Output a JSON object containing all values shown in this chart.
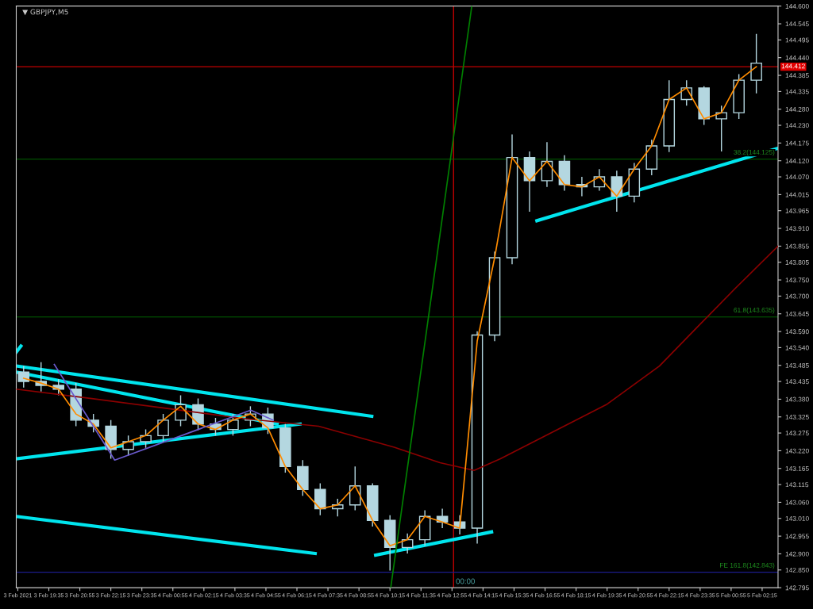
{
  "chart_data": {
    "type": "candlestick",
    "title": "▼ GBPJPY,M5",
    "xlim": [
      "2021-02-03T18:11",
      "2021-02-05T02:56"
    ],
    "ylim": [
      142.795,
      144.6
    ],
    "xticks": [
      {
        "value": "2021-02-03T18:15",
        "label": "3 Feb 2021"
      },
      {
        "value": "2021-02-03T19:35",
        "label": "3 Feb 19:35"
      },
      {
        "value": "2021-02-03T20:55",
        "label": "3 Feb 20:55"
      },
      {
        "value": "2021-02-03T22:15",
        "label": "3 Feb 22:15"
      },
      {
        "value": "2021-02-03T23:35",
        "label": "3 Feb 23:35"
      },
      {
        "value": "2021-02-04T00:55",
        "label": "4 Feb 00:55"
      },
      {
        "value": "2021-02-04T02:15",
        "label": "4 Feb 02:15"
      },
      {
        "value": "2021-02-04T03:35",
        "label": "4 Feb 03:35"
      },
      {
        "value": "2021-02-04T04:55",
        "label": "4 Feb 04:55"
      },
      {
        "value": "2021-02-04T06:15",
        "label": "4 Feb 06:15"
      },
      {
        "value": "2021-02-04T07:35",
        "label": "4 Feb 07:35"
      },
      {
        "value": "2021-02-04T08:55",
        "label": "4 Feb 08:55"
      },
      {
        "value": "2021-02-04T10:15",
        "label": "4 Feb 10:15"
      },
      {
        "value": "2021-02-04T11:35",
        "label": "4 Feb 11:35"
      },
      {
        "value": "2021-02-04T12:55",
        "label": "4 Feb 12:55"
      },
      {
        "value": "2021-02-04T14:15",
        "label": "4 Feb 14:15"
      },
      {
        "value": "2021-02-04T15:35",
        "label": "4 Feb 15:35"
      },
      {
        "value": "2021-02-04T16:55",
        "label": "4 Feb 16:55"
      },
      {
        "value": "2021-02-04T18:15",
        "label": "4 Feb 18:15"
      },
      {
        "value": "2021-02-04T19:35",
        "label": "4 Feb 19:35"
      },
      {
        "value": "2021-02-04T20:55",
        "label": "4 Feb 20:55"
      },
      {
        "value": "2021-02-04T22:15",
        "label": "4 Feb 22:15"
      },
      {
        "value": "2021-02-04T23:35",
        "label": "4 Feb 23:35"
      },
      {
        "value": "2021-02-05T00:55",
        "label": "5 Feb 00:55"
      },
      {
        "value": "2021-02-05T02:15",
        "label": "5 Feb 02:15"
      }
    ],
    "yticks": [
      {
        "value": 144.6,
        "label": "144.600"
      },
      {
        "value": 144.545,
        "label": "144.545"
      },
      {
        "value": 144.495,
        "label": "144.495"
      },
      {
        "value": 144.44,
        "label": "144.440"
      },
      {
        "value": 144.385,
        "label": "144.385"
      },
      {
        "value": 144.335,
        "label": "144.335"
      },
      {
        "value": 144.28,
        "label": "144.280"
      },
      {
        "value": 144.23,
        "label": "144.230"
      },
      {
        "value": 144.175,
        "label": "144.175"
      },
      {
        "value": 144.12,
        "label": "144.120"
      },
      {
        "value": 144.07,
        "label": "144.070"
      },
      {
        "value": 144.015,
        "label": "144.015"
      },
      {
        "value": 143.965,
        "label": "143.965"
      },
      {
        "value": 143.91,
        "label": "143.910"
      },
      {
        "value": 143.855,
        "label": "143.855"
      },
      {
        "value": 143.805,
        "label": "143.805"
      },
      {
        "value": 143.75,
        "label": "143.750"
      },
      {
        "value": 143.7,
        "label": "143.700"
      },
      {
        "value": 143.645,
        "label": "143.645"
      },
      {
        "value": 143.59,
        "label": "143.590"
      },
      {
        "value": 143.54,
        "label": "143.540"
      },
      {
        "value": 143.485,
        "label": "143.485"
      },
      {
        "value": 143.435,
        "label": "143.435"
      },
      {
        "value": 143.38,
        "label": "143.380"
      },
      {
        "value": 143.325,
        "label": "143.325"
      },
      {
        "value": 143.275,
        "label": "143.275"
      },
      {
        "value": 143.22,
        "label": "143.220"
      },
      {
        "value": 143.165,
        "label": "143.165"
      },
      {
        "value": 143.115,
        "label": "143.115"
      },
      {
        "value": 143.06,
        "label": "143.060"
      },
      {
        "value": 143.01,
        "label": "143.010"
      },
      {
        "value": 142.955,
        "label": "142.955"
      },
      {
        "value": 142.9,
        "label": "142.900"
      },
      {
        "value": 142.85,
        "label": "142.850"
      },
      {
        "value": 142.795,
        "label": "142.795"
      }
    ],
    "grid": false,
    "legend": false,
    "series": [
      {
        "type": "line",
        "color": "#8b0000",
        "line_style": "solid",
        "x": [
          "2021-02-03T18:11",
          "2021-02-03T21:26",
          "2021-02-04T00:41",
          "2021-02-04T03:56",
          "2021-02-04T07:11",
          "2021-02-04T10:26",
          "2021-02-04T12:24",
          "2021-02-04T13:52",
          "2021-02-04T15:00",
          "2021-02-04T16:57",
          "2021-02-04T19:33",
          "2021-02-04T21:50",
          "2021-02-04T23:27",
          "2021-02-05T01:05",
          "2021-02-05T02:56"
        ],
        "values": [
          143.411,
          143.382,
          143.351,
          143.32,
          143.296,
          143.231,
          143.183,
          143.159,
          143.195,
          143.267,
          143.363,
          143.483,
          143.603,
          143.723,
          143.855
        ]
      },
      {
        "type": "line",
        "color": "#ff8c00",
        "line_style": "solid",
        "x": [
          "2021-02-03T18:30",
          "2021-02-03T19:15",
          "2021-02-03T20:00",
          "2021-02-03T20:45",
          "2021-02-03T21:30",
          "2021-02-03T22:15",
          "2021-02-03T23:00",
          "2021-02-03T23:45",
          "2021-02-04T00:30",
          "2021-02-04T01:15",
          "2021-02-04T02:00",
          "2021-02-04T02:45",
          "2021-02-04T03:30",
          "2021-02-04T04:15",
          "2021-02-04T05:00",
          "2021-02-04T05:45",
          "2021-02-04T06:30",
          "2021-02-04T07:15",
          "2021-02-04T08:00",
          "2021-02-04T08:45",
          "2021-02-04T09:30",
          "2021-02-04T10:15",
          "2021-02-04T11:00",
          "2021-02-04T11:45",
          "2021-02-04T12:30",
          "2021-02-04T13:15",
          "2021-02-04T14:00",
          "2021-02-04T14:45",
          "2021-02-04T15:30",
          "2021-02-04T16:15",
          "2021-02-04T17:00",
          "2021-02-04T17:45",
          "2021-02-04T18:30",
          "2021-02-04T19:15",
          "2021-02-04T20:00",
          "2021-02-04T20:45",
          "2021-02-04T21:30",
          "2021-02-04T22:15",
          "2021-02-04T23:00",
          "2021-02-04T23:45",
          "2021-02-05T00:30",
          "2021-02-05T01:15",
          "2021-02-05T02:00"
        ],
        "values": [
          143.445,
          143.43,
          143.411,
          143.334,
          143.303,
          143.229,
          143.248,
          143.267,
          143.315,
          143.358,
          143.303,
          143.286,
          143.315,
          143.334,
          143.291,
          143.171,
          143.1,
          143.04,
          143.052,
          143.111,
          143.004,
          142.925,
          142.944,
          143.016,
          142.999,
          142.98,
          143.56,
          143.819,
          144.13,
          144.058,
          144.118,
          144.046,
          144.039,
          144.07,
          144.01,
          144.094,
          144.166,
          144.31,
          144.346,
          144.25,
          144.269,
          144.37,
          144.412
        ]
      },
      {
        "type": "line",
        "color": "#6a5acd",
        "line_style": "solid",
        "x": [
          "2021-02-03T19:49",
          "2021-02-03T22:25",
          "2021-02-04T04:16",
          "2021-02-04T05:14"
        ],
        "values": [
          143.488,
          143.191,
          143.346,
          143.315
        ]
      },
      {
        "type": "line",
        "color": "#00e5ee",
        "line_style": "solid",
        "x": [
          "2021-02-03T18:11",
          "2021-02-04T09:28"
        ],
        "values": [
          143.483,
          143.327
        ]
      },
      {
        "type": "line",
        "color": "#00e5ee",
        "line_style": "solid",
        "x": [
          "2021-02-03T18:11",
          "2021-02-04T05:24"
        ],
        "values": [
          143.464,
          143.303
        ]
      },
      {
        "type": "line",
        "color": "#00e5ee",
        "line_style": "solid",
        "x": [
          "2021-02-03T18:11",
          "2021-02-04T06:23"
        ],
        "values": [
          143.195,
          143.303
        ]
      },
      {
        "type": "line",
        "color": "#00e5ee",
        "line_style": "solid",
        "x": [
          "2021-02-03T18:11",
          "2021-02-04T07:02"
        ],
        "values": [
          143.016,
          142.901
        ]
      },
      {
        "type": "line",
        "color": "#00e5ee",
        "line_style": "solid",
        "x": [
          "2021-02-04T09:38",
          "2021-02-04T14:37"
        ],
        "values": [
          142.896,
          142.968
        ]
      },
      {
        "type": "line",
        "color": "#00e5ee",
        "line_style": "solid",
        "x": [
          "2021-02-04T16:34",
          "2021-02-05T02:56"
        ],
        "values": [
          143.934,
          144.159
        ]
      },
      {
        "type": "line",
        "color": "#00e5ee",
        "line_style": "solid",
        "x": [
          "2021-02-03T18:11",
          "2021-02-03T18:23"
        ],
        "values": [
          143.526,
          143.545
        ]
      },
      {
        "type": "line",
        "color": "#008000",
        "line_style": "solid",
        "x": [
          "2021-02-04T10:17",
          "2021-02-04T13:46"
        ],
        "values": [
          142.795,
          144.6
        ]
      },
      {
        "color": "#b4d7e0",
        "x": [
          "2021-02-03T18:30",
          "2021-02-03T19:15",
          "2021-02-03T20:00",
          "2021-02-03T20:45",
          "2021-02-03T21:30",
          "2021-02-03T22:15",
          "2021-02-03T23:00",
          "2021-02-03T23:45",
          "2021-02-04T00:30",
          "2021-02-04T01:15",
          "2021-02-04T02:00",
          "2021-02-04T02:45",
          "2021-02-04T03:30",
          "2021-02-04T04:15",
          "2021-02-04T05:00",
          "2021-02-04T05:45",
          "2021-02-04T06:30",
          "2021-02-04T07:15",
          "2021-02-04T08:00",
          "2021-02-04T08:45",
          "2021-02-04T09:30",
          "2021-02-04T10:15",
          "2021-02-04T11:00",
          "2021-02-04T11:45",
          "2021-02-04T12:30",
          "2021-02-04T13:15",
          "2021-02-04T14:00",
          "2021-02-04T14:45",
          "2021-02-04T15:30",
          "2021-02-04T16:15",
          "2021-02-04T17:00",
          "2021-02-04T17:45",
          "2021-02-04T18:30",
          "2021-02-04T19:15",
          "2021-02-04T20:00",
          "2021-02-04T20:45",
          "2021-02-04T21:30",
          "2021-02-04T22:15",
          "2021-02-04T23:00",
          "2021-02-04T23:45",
          "2021-02-05T00:30",
          "2021-02-05T01:15",
          "2021-02-05T02:00"
        ],
        "ohlc": [
          [
            143.464,
            143.483,
            143.416,
            143.435
          ],
          [
            143.435,
            143.495,
            143.404,
            143.423
          ],
          [
            143.423,
            143.442,
            143.392,
            143.411
          ],
          [
            143.411,
            143.43,
            143.296,
            143.315
          ],
          [
            143.315,
            143.334,
            143.277,
            143.296
          ],
          [
            143.296,
            143.315,
            143.195,
            143.224
          ],
          [
            143.224,
            143.267,
            143.205,
            143.248
          ],
          [
            143.248,
            143.286,
            143.229,
            143.267
          ],
          [
            143.267,
            143.334,
            143.248,
            143.315
          ],
          [
            143.315,
            143.392,
            143.296,
            143.363
          ],
          [
            143.363,
            143.382,
            143.284,
            143.303
          ],
          [
            143.303,
            143.322,
            143.267,
            143.286
          ],
          [
            143.286,
            143.334,
            143.267,
            143.315
          ],
          [
            143.315,
            143.358,
            143.296,
            143.334
          ],
          [
            143.334,
            143.354,
            143.272,
            143.291
          ],
          [
            143.291,
            143.303,
            143.152,
            143.171
          ],
          [
            143.171,
            143.191,
            143.08,
            143.1
          ],
          [
            143.1,
            143.119,
            143.02,
            143.04
          ],
          [
            143.04,
            143.071,
            143.016,
            143.052
          ],
          [
            143.052,
            143.171,
            143.035,
            143.111
          ],
          [
            143.111,
            143.119,
            142.985,
            143.004
          ],
          [
            143.004,
            143.02,
            142.848,
            142.92
          ],
          [
            142.92,
            142.963,
            142.901,
            142.944
          ],
          [
            142.944,
            143.035,
            142.925,
            143.016
          ],
          [
            143.016,
            143.04,
            142.98,
            142.999
          ],
          [
            142.999,
            143.02,
            142.96,
            142.98
          ],
          [
            142.98,
            143.591,
            142.932,
            143.579
          ],
          [
            143.579,
            143.838,
            143.56,
            143.819
          ],
          [
            143.819,
            144.202,
            143.799,
            144.13
          ],
          [
            144.13,
            144.149,
            143.962,
            144.058
          ],
          [
            144.058,
            144.178,
            144.039,
            144.118
          ],
          [
            144.118,
            144.137,
            144.027,
            144.046
          ],
          [
            144.046,
            144.07,
            144.01,
            144.039
          ],
          [
            144.039,
            144.094,
            144.027,
            144.07
          ],
          [
            144.07,
            144.089,
            143.962,
            144.01
          ],
          [
            144.01,
            144.113,
            143.991,
            144.094
          ],
          [
            144.094,
            144.185,
            144.075,
            144.166
          ],
          [
            144.166,
            144.37,
            144.147,
            144.31
          ],
          [
            144.31,
            144.37,
            144.291,
            144.346
          ],
          [
            144.346,
            144.351,
            144.231,
            144.25
          ],
          [
            144.25,
            144.291,
            144.149,
            144.269
          ],
          [
            144.269,
            144.389,
            144.25,
            144.37
          ],
          [
            144.37,
            144.514,
            144.329,
            144.423
          ]
        ]
      }
    ],
    "ref_lines": [
      {
        "axis": "y",
        "value": 144.412,
        "label": "144.412",
        "color": "#c00000",
        "line_style": "solid"
      },
      {
        "axis": "x",
        "value": "2021-02-04T12:59",
        "color": "#c00000",
        "line_style": "solid"
      },
      {
        "axis": "y",
        "value": 144.125,
        "label": "38.2(144.125)",
        "color": "#006400",
        "line_style": "solid"
      },
      {
        "axis": "y",
        "value": 143.635,
        "label": "61.8(143.635)",
        "color": "#006400",
        "line_style": "solid"
      },
      {
        "axis": "y",
        "value": 142.843,
        "label": "FE 161.8(142.843)",
        "color": "#1c1c8c",
        "line_style": "solid"
      }
    ],
    "annotations": [
      {
        "text": "00:00",
        "x": "2021-02-04T12:59",
        "y": 142.795
      }
    ]
  }
}
